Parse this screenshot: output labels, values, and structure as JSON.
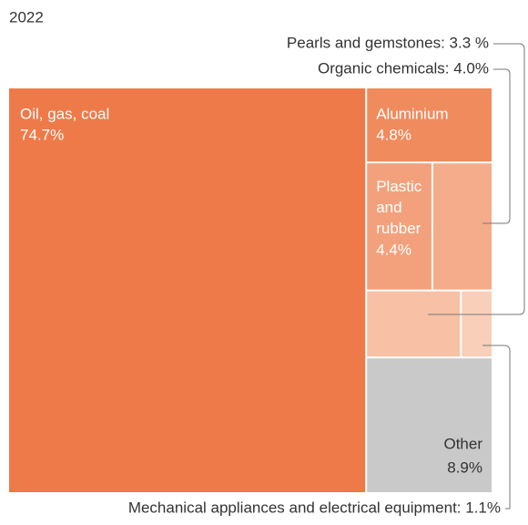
{
  "chart_data": {
    "type": "treemap",
    "title": "2022",
    "categories": [
      "Oil, gas, coal",
      "Aluminium",
      "Plastic and rubber",
      null,
      null,
      null,
      "Other"
    ],
    "values": [
      74.7,
      4.8,
      4.4,
      4.0,
      3.3,
      1.1,
      8.9
    ],
    "value_labels": [
      "74.7%",
      "4.8%",
      "4.4%",
      null,
      null,
      null,
      "8.9%"
    ],
    "colors": [
      "#ee7a4a",
      "#f08b5d",
      "#f3a17c",
      "#f5ac8b",
      "#f8c1a5",
      "#f9cfb9",
      "#c9c9c9"
    ],
    "annotations": [
      "Pearls and gemstones: 3.3 %",
      "Organic chemicals: 4.0%",
      "Mechanical appliances and electrical equipment: 1.1%"
    ]
  }
}
